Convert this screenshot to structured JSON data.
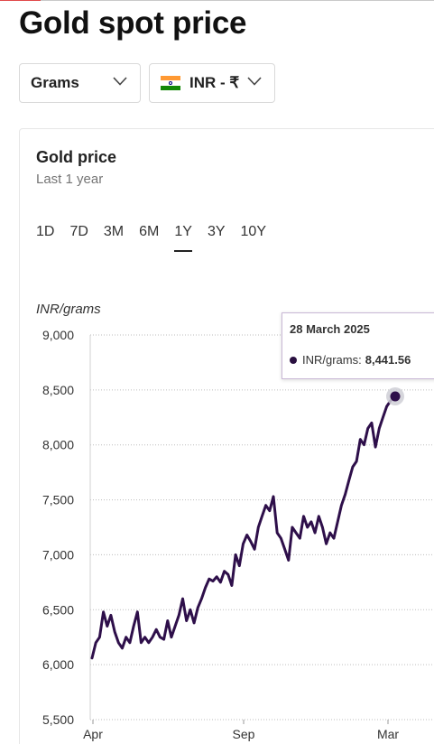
{
  "page": {
    "title": "Gold spot price"
  },
  "controls": {
    "unit_select": "Grams",
    "currency_select": "INR - ₹"
  },
  "card": {
    "title": "Gold price",
    "subtitle": "Last 1 year",
    "tabs": [
      {
        "label": "1D",
        "active": false
      },
      {
        "label": "7D",
        "active": false
      },
      {
        "label": "3M",
        "active": false
      },
      {
        "label": "6M",
        "active": false
      },
      {
        "label": "1Y",
        "active": true
      },
      {
        "label": "3Y",
        "active": false
      },
      {
        "label": "10Y",
        "active": false
      }
    ]
  },
  "tooltip": {
    "date": "28 March 2025",
    "series_label": "INR/grams:",
    "value": "8,441.56"
  },
  "colors": {
    "line": "#2e0f4a",
    "grid": "#bdbdbd",
    "tooltip_border": "#c9b8d6"
  },
  "icons": {
    "dropdown": "chevron-down-icon",
    "flag": "india-flag-icon"
  },
  "chart_data": {
    "type": "line",
    "title": "Gold price",
    "subtitle": "Last 1 year",
    "ylabel": "INR/grams",
    "ylim": [
      5500,
      9000
    ],
    "yticks": [
      5500,
      6000,
      6500,
      7000,
      7500,
      8000,
      8500,
      9000
    ],
    "ytick_labels": [
      "5,500",
      "6,000",
      "6,500",
      "7,000",
      "7,500",
      "8,000",
      "8,500",
      "9,000"
    ],
    "xtick_labels": [
      "Apr",
      "Sep",
      "Mar"
    ],
    "grid": true,
    "series": [
      {
        "name": "INR/grams",
        "values": [
          6060,
          6200,
          6250,
          6480,
          6350,
          6450,
          6300,
          6200,
          6150,
          6250,
          6200,
          6350,
          6480,
          6200,
          6250,
          6200,
          6250,
          6320,
          6250,
          6230,
          6400,
          6250,
          6350,
          6450,
          6600,
          6400,
          6500,
          6380,
          6520,
          6600,
          6700,
          6780,
          6760,
          6800,
          6750,
          6850,
          6820,
          6720,
          7000,
          6900,
          7100,
          7180,
          7120,
          7050,
          7250,
          7350,
          7450,
          7400,
          7530,
          7200,
          7150,
          7050,
          6950,
          7250,
          7200,
          7150,
          7350,
          7250,
          7300,
          7200,
          7350,
          7250,
          7100,
          7200,
          7150,
          7300,
          7450,
          7550,
          7680,
          7800,
          7850,
          8050,
          8000,
          8150,
          8200,
          7980,
          8150,
          8250,
          8350,
          8400,
          8441.56
        ]
      }
    ],
    "highlight": {
      "date": "28 March 2025",
      "value": 8441.56
    }
  }
}
